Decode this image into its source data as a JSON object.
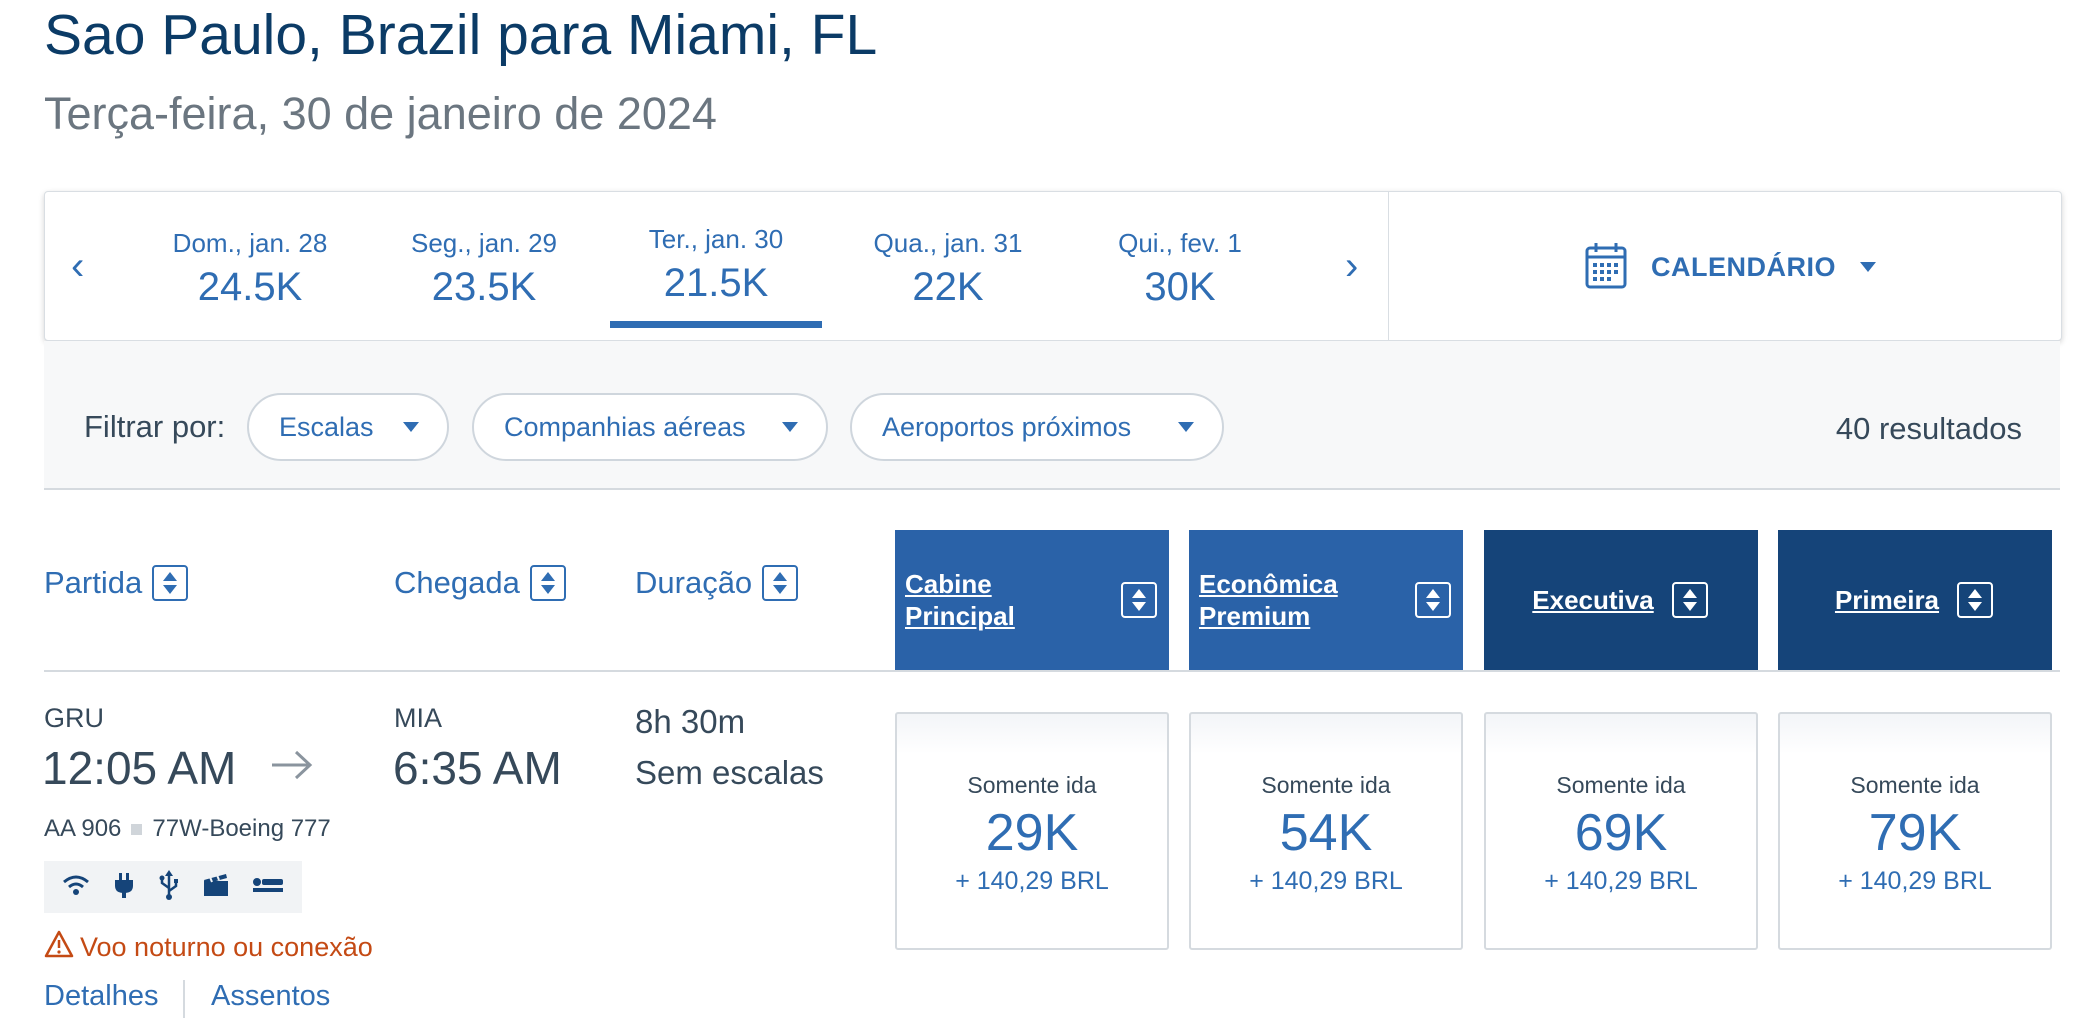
{
  "header": {
    "title": "Sao Paulo, Brazil para Miami, FL",
    "subtitle": "Terça-feira, 30 de janeiro de 2024"
  },
  "date_strip": {
    "dates": [
      {
        "label": "Dom., jan. 28",
        "price": "24.5K"
      },
      {
        "label": "Seg., jan. 29",
        "price": "23.5K"
      },
      {
        "label": "Ter., jan. 30",
        "price": "21.5K",
        "selected": true
      },
      {
        "label": "Qua., jan. 31",
        "price": "22K"
      },
      {
        "label": "Qui., fev. 1",
        "price": "30K"
      }
    ],
    "prev_symbol": "‹",
    "next_symbol": "›",
    "calendar_label": "CALENDÁRIO",
    "calendar_icon": "calendar-icon"
  },
  "filters": {
    "label": "Filtrar por:",
    "options": [
      "Escalas",
      "Companhias aéreas",
      "Aeroportos próximos"
    ],
    "results": "40 resultados"
  },
  "columns": {
    "departure": "Partida",
    "arrival": "Chegada",
    "duration": "Duração",
    "cabins": [
      "Cabine Principal",
      "Econômica Premium",
      "Executiva",
      "Primeira"
    ]
  },
  "flight": {
    "origin": "GRU",
    "departure_time": "12:05 AM",
    "destination": "MIA",
    "arrival_time": "6:35 AM",
    "duration": "8h 30m",
    "stops": "Sem escalas",
    "flight_number": "AA 906",
    "aircraft": "77W-Boeing 777",
    "amenities": [
      "wifi-icon",
      "power-plug-icon",
      "usb-icon",
      "entertainment-icon",
      "lie-flat-seat-icon"
    ],
    "warning": "Voo noturno ou conexão",
    "details_link": "Detalhes",
    "seats_link": "Assentos",
    "fares": [
      {
        "type": "Somente ida",
        "price": "29K",
        "fee": "+ 140,29 BRL"
      },
      {
        "type": "Somente ida",
        "price": "54K",
        "fee": "+ 140,29 BRL"
      },
      {
        "type": "Somente ida",
        "price": "69K",
        "fee": "+ 140,29 BRL"
      },
      {
        "type": "Somente ida",
        "price": "79K",
        "fee": "+ 140,29 BRL"
      }
    ]
  },
  "colors": {
    "primary": "#2f6db3",
    "cabin_light": "#2a62a8",
    "cabin_dark": "#154479",
    "title": "#0b3b66",
    "warning": "#c44a14"
  }
}
